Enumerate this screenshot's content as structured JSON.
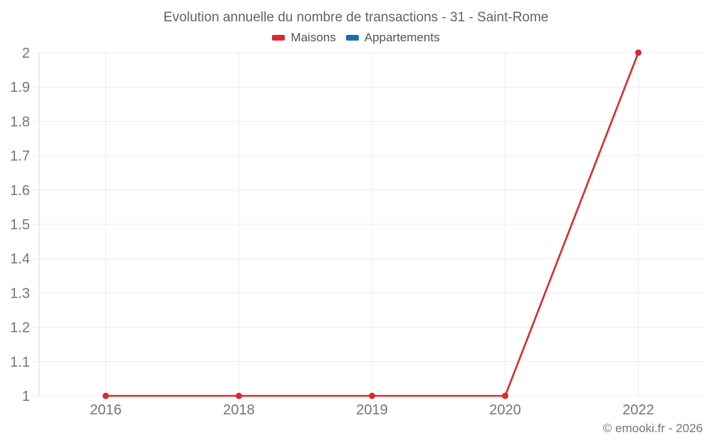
{
  "chart_data": {
    "type": "line",
    "title": "Evolution annuelle du nombre de transactions - 31 - Saint-Rome",
    "categories": [
      "2016",
      "2018",
      "2019",
      "2020",
      "2022"
    ],
    "series": [
      {
        "name": "Maisons",
        "color": "#d92b2e",
        "values": [
          1,
          1,
          1,
          1,
          2
        ]
      },
      {
        "name": "Appartements",
        "color": "#1b6fa8",
        "values": []
      }
    ],
    "xlabel": "",
    "ylabel": "",
    "ylim": [
      1,
      2
    ],
    "yticks": [
      1,
      1.1,
      1.2,
      1.3,
      1.4,
      1.5,
      1.6,
      1.7,
      1.8,
      1.9,
      2
    ],
    "grid": true,
    "legend_position": "top",
    "marker": "circle"
  },
  "watermark": {
    "text": "© emooki.fr - 2026"
  },
  "colors": {
    "grid_line": "#ececec",
    "axis_line": "#dedede",
    "tick_label": "#757575",
    "title_text": "#5f6368",
    "legend_text": "#545454",
    "watermark_text": "#757575"
  }
}
